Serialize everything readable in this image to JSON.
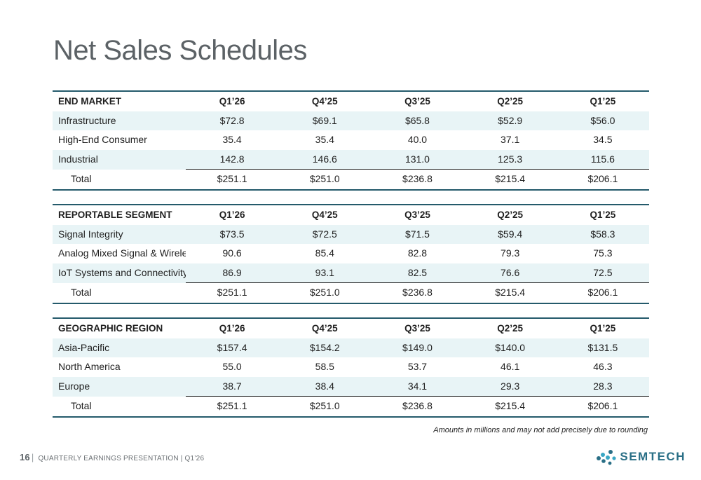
{
  "title": "Net Sales Schedules",
  "columns": [
    "Q1’26",
    "Q4’25",
    "Q3’25",
    "Q2’25",
    "Q1’25"
  ],
  "tables": [
    {
      "heading": "END MARKET",
      "rows": [
        {
          "label": "Infrastructure",
          "values": [
            "$72.8",
            "$69.1",
            "$65.8",
            "$52.9",
            "$56.0"
          ]
        },
        {
          "label": "High-End Consumer",
          "values": [
            "35.4",
            "35.4",
            "40.0",
            "37.1",
            "34.5"
          ]
        },
        {
          "label": "Industrial",
          "values": [
            "142.8",
            "146.6",
            "131.0",
            "125.3",
            "115.6"
          ]
        }
      ],
      "total": {
        "label": "Total",
        "values": [
          "$251.1",
          "$251.0",
          "$236.8",
          "$215.4",
          "$206.1"
        ]
      }
    },
    {
      "heading": "REPORTABLE SEGMENT",
      "rows": [
        {
          "label": "Signal Integrity",
          "values": [
            "$73.5",
            "$72.5",
            "$71.5",
            "$59.4",
            "$58.3"
          ]
        },
        {
          "label": "Analog Mixed Signal & Wireless",
          "values": [
            "90.6",
            "85.4",
            "82.8",
            "79.3",
            "75.3"
          ]
        },
        {
          "label": "IoT Systems and Connectivity",
          "values": [
            "86.9",
            "93.1",
            "82.5",
            "76.6",
            "72.5"
          ]
        }
      ],
      "total": {
        "label": "Total",
        "values": [
          "$251.1",
          "$251.0",
          "$236.8",
          "$215.4",
          "$206.1"
        ]
      }
    },
    {
      "heading": "GEOGRAPHIC REGION",
      "rows": [
        {
          "label": "Asia-Pacific",
          "values": [
            "$157.4",
            "$154.2",
            "$149.0",
            "$140.0",
            "$131.5"
          ]
        },
        {
          "label": "North America",
          "values": [
            "55.0",
            "58.5",
            "53.7",
            "46.1",
            "46.3"
          ]
        },
        {
          "label": "Europe",
          "values": [
            "38.7",
            "38.4",
            "34.1",
            "29.3",
            "28.3"
          ]
        }
      ],
      "total": {
        "label": "Total",
        "values": [
          "$251.1",
          "$251.0",
          "$236.8",
          "$215.4",
          "$206.1"
        ]
      }
    }
  ],
  "footnote": "Amounts in millions and may not add precisely due to rounding",
  "footer": {
    "page": "16",
    "text": "QUARTERLY EARNINGS PRESENTATION | Q1’26"
  },
  "logo": {
    "text": "SEMTECH",
    "mark_icon": "semtech-logo-icon"
  },
  "colors": {
    "accent": "#245a6b",
    "row_shade": "#e8f4f6",
    "title": "#5c6266",
    "logo": "#2a6f86"
  }
}
